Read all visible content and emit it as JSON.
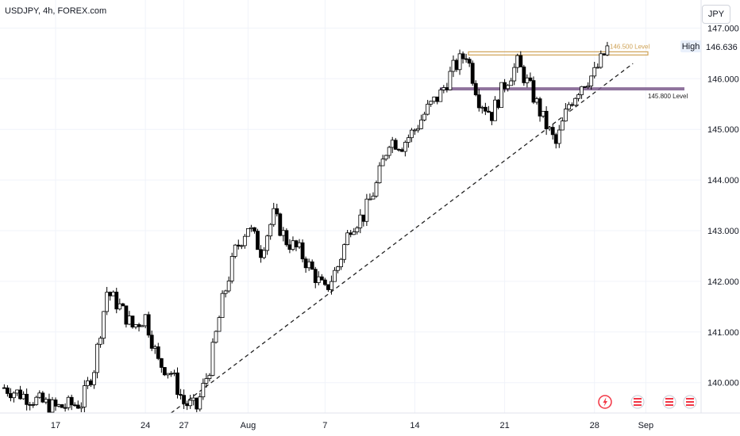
{
  "header": {
    "title": "USDJPY, 4h, FOREX.com",
    "currency": "JPY"
  },
  "colors": {
    "up_body": "#ffffff",
    "down_body": "#000000",
    "wick": "#000000",
    "grid": "#f0f3fa",
    "level_high": "#cfa255",
    "level_low": "#7b5a8c",
    "trendline": "#222222",
    "axis_text": "#131722",
    "high_flag_bg": "#e9f0fb",
    "high_flag_text": "#131722",
    "event_icon_red": "#f23645"
  },
  "chart_data": {
    "type": "candlestick",
    "title": "USDJPY, 4h, FOREX.com",
    "y_axis": {
      "unit": "JPY",
      "ticks": [
        "147.000",
        "146.000",
        "145.000",
        "144.000",
        "143.000",
        "142.000",
        "141.000",
        "140.000"
      ],
      "ylim": [
        139.4,
        147.3
      ]
    },
    "x_axis": {
      "ticks": [
        "17",
        "24",
        "27",
        "Aug",
        "7",
        "14",
        "21",
        "28",
        "Sep"
      ]
    },
    "high_marker": {
      "label": "High",
      "value": "146.636"
    },
    "levels": [
      {
        "label": "146.500 Level",
        "value": 146.5
      },
      {
        "label": "145.800 Level",
        "value": 145.8
      }
    ],
    "trendline": {
      "from": {
        "date": "Jul 26",
        "value": 139.4
      },
      "to": {
        "date": "Aug 31",
        "value": 146.3
      }
    },
    "price_path": [
      [
        "Jul 13",
        139.9
      ],
      [
        "Jul 17",
        139.5
      ],
      [
        "Jul 19",
        139.6
      ],
      [
        "Jul 20",
        140.3
      ],
      [
        "Jul 21",
        141.8
      ],
      [
        "Jul 22",
        141.5
      ],
      [
        "Jul 23",
        141.1
      ],
      [
        "Jul 24",
        141.3
      ],
      [
        "Jul 25",
        140.4
      ],
      [
        "Jul 26",
        140.2
      ],
      [
        "Jul 27",
        139.6
      ],
      [
        "Jul 28",
        139.5
      ],
      [
        "Jul 29",
        140.3
      ],
      [
        "Jul 30",
        141.6
      ],
      [
        "Jul 31",
        142.6
      ],
      [
        "Aug 1",
        143.1
      ],
      [
        "Aug 2",
        142.6
      ],
      [
        "Aug 3",
        143.3
      ],
      [
        "Aug 4",
        142.8
      ],
      [
        "Aug 5",
        142.6
      ],
      [
        "Aug 6",
        142.2
      ],
      [
        "Aug 7",
        141.8
      ],
      [
        "Aug 8",
        142.3
      ],
      [
        "Aug 9",
        143.1
      ],
      [
        "Aug 10",
        143.3
      ],
      [
        "Aug 11",
        143.9
      ],
      [
        "Aug 12",
        144.8
      ],
      [
        "Aug 13",
        144.7
      ],
      [
        "Aug 14",
        145.0
      ],
      [
        "Aug 15",
        145.4
      ],
      [
        "Aug 16",
        145.7
      ],
      [
        "Aug 17",
        146.2
      ],
      [
        "Aug 18",
        146.5
      ],
      [
        "Aug 19",
        145.6
      ],
      [
        "Aug 20",
        145.3
      ],
      [
        "Aug 21",
        145.9
      ],
      [
        "Aug 22",
        146.3
      ],
      [
        "Aug 23",
        145.8
      ],
      [
        "Aug 24",
        145.2
      ],
      [
        "Aug 25",
        144.7
      ],
      [
        "Aug 26",
        145.5
      ],
      [
        "Aug 27",
        145.9
      ],
      [
        "Aug 28",
        146.1
      ],
      [
        "Aug 29",
        146.6
      ]
    ],
    "grid": true,
    "legend": "none"
  }
}
